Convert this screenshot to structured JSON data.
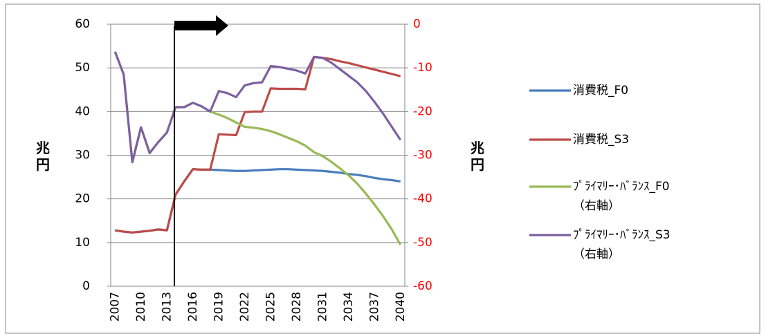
{
  "chart_data": {
    "type": "line",
    "categories": [
      "2007",
      null,
      null,
      "2010",
      null,
      null,
      "2013",
      null,
      null,
      "2016",
      null,
      null,
      "2019",
      null,
      null,
      "2022",
      null,
      null,
      "2025",
      null,
      null,
      "2028",
      null,
      null,
      "2031",
      null,
      null,
      "2034",
      null,
      null,
      "2037",
      null,
      null,
      "2040"
    ],
    "y_label": "兆\n円",
    "y2_label": "兆\n円",
    "ylim": [
      0,
      60
    ],
    "yticks": [
      0,
      10,
      20,
      30,
      40,
      50,
      60
    ],
    "y2lim": [
      -60,
      0
    ],
    "y2ticks": [
      -60,
      -50,
      -40,
      -30,
      -20,
      -10,
      0
    ],
    "y2_tick_color": "#ff0000",
    "grid": true,
    "legend": "right",
    "series": [
      {
        "name": "消費税_F0",
        "color": "#4a7ebb",
        "axis": "y",
        "values": [
          12.8,
          12.5,
          12.3,
          12.5,
          12.7,
          13.0,
          12.8,
          21.0,
          24.0,
          26.8,
          26.7,
          26.7,
          26.6,
          26.5,
          26.4,
          26.4,
          26.5,
          26.6,
          26.7,
          26.8,
          26.8,
          26.7,
          26.6,
          26.5,
          26.4,
          26.2,
          26.0,
          25.7,
          25.5,
          25.2,
          24.8,
          24.5,
          24.3,
          24.0
        ]
      },
      {
        "name": "消費税_S3",
        "color": "#be4b48",
        "axis": "y",
        "values": [
          12.8,
          12.5,
          12.3,
          12.5,
          12.7,
          13.0,
          12.8,
          21.0,
          24.0,
          26.8,
          26.7,
          26.7,
          34.8,
          34.7,
          34.6,
          39.9,
          40.0,
          40.0,
          45.3,
          45.2,
          45.2,
          45.2,
          45.1,
          52.5,
          52.3,
          52.0,
          51.5,
          51.1,
          50.6,
          50.1,
          49.6,
          49.1,
          48.6,
          48.1
        ]
      },
      {
        "name": "ﾌﾟﾗｲﾏﾘｰ･ﾊﾞﾗﾝｽ_F0\n（右軸）",
        "color": "#98b954",
        "axis": "y2",
        "values": [
          -6.3,
          -11.5,
          -31.6,
          -23.6,
          -29.5,
          -27.0,
          -24.8,
          -19.0,
          -19.0,
          -18.0,
          -18.8,
          -20.0,
          -20.7,
          -21.5,
          -22.5,
          -23.5,
          -23.7,
          -24.0,
          -24.5,
          -25.2,
          -26.0,
          -26.8,
          -27.8,
          -29.3,
          -30.2,
          -31.5,
          -33.0,
          -34.6,
          -36.5,
          -38.8,
          -41.3,
          -44.0,
          -47.0,
          -50.5
        ]
      },
      {
        "name": "ﾌﾟﾗｲﾏﾘｰ･ﾊﾞﾗﾝｽ_S3\n（右軸）",
        "color": "#7d60a0",
        "axis": "y2",
        "values": [
          -6.3,
          -11.5,
          -31.6,
          -23.6,
          -29.5,
          -27.0,
          -24.8,
          -19.0,
          -19.0,
          -18.0,
          -18.8,
          -20.0,
          -15.3,
          -15.8,
          -16.7,
          -14.0,
          -13.5,
          -13.3,
          -9.6,
          -9.8,
          -10.2,
          -10.6,
          -11.3,
          -7.5,
          -7.7,
          -8.8,
          -10.3,
          -11.8,
          -13.3,
          -15.3,
          -17.8,
          -20.5,
          -23.5,
          -26.5
        ]
      }
    ]
  }
}
